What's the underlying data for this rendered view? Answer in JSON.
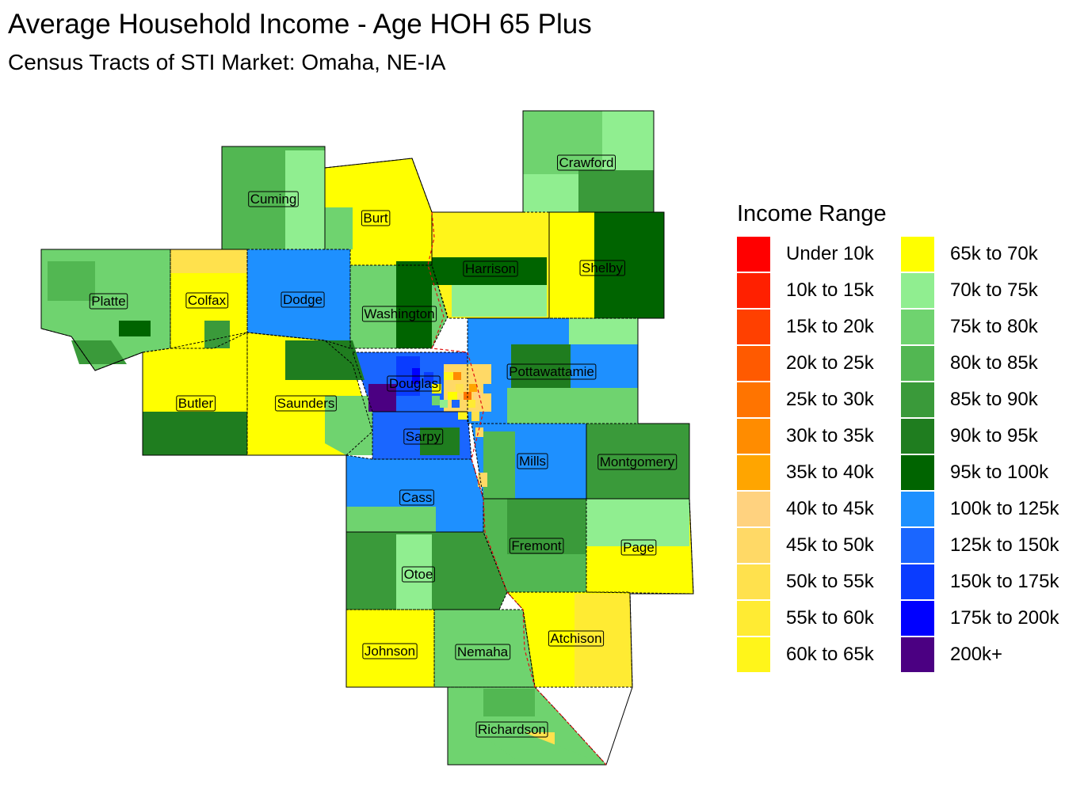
{
  "title": "Average Household Income - Age HOH 65 Plus",
  "subtitle": "Census Tracts of STI Market: Omaha, NE-IA",
  "legend": {
    "title": "Income Range",
    "items": [
      {
        "label": "Under 10k",
        "color": "#ff0000"
      },
      {
        "label": "10k to 15k",
        "color": "#ff2000"
      },
      {
        "label": "15k to 20k",
        "color": "#ff4000"
      },
      {
        "label": "20k to 25k",
        "color": "#ff5a00"
      },
      {
        "label": "25k to 30k",
        "color": "#ff7400"
      },
      {
        "label": "30k to 35k",
        "color": "#ff8c00"
      },
      {
        "label": "35k to 40k",
        "color": "#ffa500"
      },
      {
        "label": "40k to 45k",
        "color": "#ffd27f"
      },
      {
        "label": "45k to 50k",
        "color": "#ffd966"
      },
      {
        "label": "50k to 55k",
        "color": "#ffe14d"
      },
      {
        "label": "55k to 60k",
        "color": "#ffeb33"
      },
      {
        "label": "60k to 65k",
        "color": "#fff51a"
      },
      {
        "label": "65k to 70k",
        "color": "#ffff00"
      },
      {
        "label": "70k to 75k",
        "color": "#90ee90"
      },
      {
        "label": "75k to 80k",
        "color": "#6fd36f"
      },
      {
        "label": "80k to 85k",
        "color": "#52b752"
      },
      {
        "label": "85k to 90k",
        "color": "#3a9a3a"
      },
      {
        "label": "90k to 95k",
        "color": "#1f7d1f"
      },
      {
        "label": "95k to 100k",
        "color": "#006400"
      },
      {
        "label": "100k to 125k",
        "color": "#1e90ff"
      },
      {
        "label": "125k to 150k",
        "color": "#1a66ff"
      },
      {
        "label": "150k to 175k",
        "color": "#0a3cff"
      },
      {
        "label": "175k to 200k",
        "color": "#0000ff"
      },
      {
        "label": "200k+",
        "color": "#4b0082"
      }
    ]
  },
  "counties": [
    {
      "name": "Platte",
      "fill_color": "#6fd36f"
    },
    {
      "name": "Colfax",
      "fill_color": "#ffff00"
    },
    {
      "name": "Cuming",
      "fill_color": "#52b752"
    },
    {
      "name": "Burt",
      "fill_color": "#ffff00"
    },
    {
      "name": "Dodge",
      "fill_color": "#1e90ff"
    },
    {
      "name": "Washington",
      "fill_color": "#6fd36f"
    },
    {
      "name": "Harrison",
      "fill_color": "#fff51a"
    },
    {
      "name": "Crawford",
      "fill_color": "#90ee90"
    },
    {
      "name": "Shelby",
      "fill_color": "#ffff00"
    },
    {
      "name": "Butler",
      "fill_color": "#ffff00"
    },
    {
      "name": "Saunders",
      "fill_color": "#ffff00"
    },
    {
      "name": "Douglas",
      "fill_color": "#1a66ff"
    },
    {
      "name": "Pottawattamie",
      "fill_color": "#1e90ff"
    },
    {
      "name": "Sarpy",
      "fill_color": "#1a66ff"
    },
    {
      "name": "Mills",
      "fill_color": "#1e90ff"
    },
    {
      "name": "Montgomery",
      "fill_color": "#3a9a3a"
    },
    {
      "name": "Cass",
      "fill_color": "#1e90ff"
    },
    {
      "name": "Fremont",
      "fill_color": "#52b752"
    },
    {
      "name": "Page",
      "fill_color": "#ffff00"
    },
    {
      "name": "Otoe",
      "fill_color": "#3a9a3a"
    },
    {
      "name": "Johnson",
      "fill_color": "#ffff00"
    },
    {
      "name": "Nemaha",
      "fill_color": "#6fd36f"
    },
    {
      "name": "Atchison",
      "fill_color": "#ffff00"
    },
    {
      "name": "Richardson",
      "fill_color": "#6fd36f"
    }
  ]
}
